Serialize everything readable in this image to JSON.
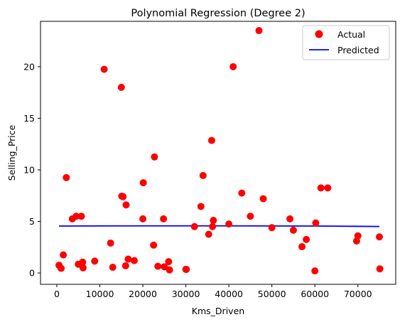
{
  "chart_data": {
    "type": "scatter",
    "title": "Polynomial Regression (Degree 2)",
    "xlabel": "Kms_Driven",
    "ylabel": "Selling_Price",
    "xlim": [
      -3800,
      78800
    ],
    "ylim": [
      -1.1,
      24.4
    ],
    "xticks": [
      0,
      10000,
      20000,
      30000,
      40000,
      50000,
      60000,
      70000
    ],
    "xtick_labels": [
      "0",
      "10000",
      "20000",
      "30000",
      "40000",
      "50000",
      "60000",
      "70000"
    ],
    "yticks": [
      0,
      5,
      10,
      15,
      20
    ],
    "ytick_labels": [
      "0",
      "5",
      "10",
      "15",
      "20"
    ],
    "grid": false,
    "legend_position": "top-right",
    "colors": {
      "actual": "#ff0000",
      "predicted": "#0000ff"
    },
    "series": [
      {
        "name": "Actual",
        "kind": "scatter",
        "points": [
          [
            500,
            0.75
          ],
          [
            1000,
            0.45
          ],
          [
            1500,
            1.75
          ],
          [
            2200,
            9.25
          ],
          [
            3600,
            5.25
          ],
          [
            4500,
            5.5
          ],
          [
            5000,
            0.85
          ],
          [
            5700,
            5.5
          ],
          [
            6000,
            1.05
          ],
          [
            6100,
            0.5
          ],
          [
            8800,
            1.15
          ],
          [
            11000,
            19.75
          ],
          [
            12500,
            2.9
          ],
          [
            13000,
            0.55
          ],
          [
            15000,
            18.0
          ],
          [
            15100,
            7.45
          ],
          [
            15400,
            7.4
          ],
          [
            16000,
            0.7
          ],
          [
            16100,
            6.6
          ],
          [
            16600,
            1.35
          ],
          [
            18000,
            1.2
          ],
          [
            20000,
            5.25
          ],
          [
            20100,
            8.75
          ],
          [
            22500,
            2.7
          ],
          [
            22700,
            11.25
          ],
          [
            23500,
            0.65
          ],
          [
            24800,
            5.25
          ],
          [
            25000,
            0.6
          ],
          [
            26000,
            1.1
          ],
          [
            26200,
            0.3
          ],
          [
            30000,
            0.35
          ],
          [
            30100,
            0.35
          ],
          [
            32000,
            4.5
          ],
          [
            33500,
            6.45
          ],
          [
            34000,
            9.45
          ],
          [
            35300,
            3.75
          ],
          [
            36000,
            12.85
          ],
          [
            36200,
            4.5
          ],
          [
            36400,
            5.1
          ],
          [
            40000,
            4.75
          ],
          [
            41000,
            20.0
          ],
          [
            43000,
            7.75
          ],
          [
            45000,
            5.5
          ],
          [
            47000,
            23.5
          ],
          [
            48000,
            7.2
          ],
          [
            50000,
            4.4
          ],
          [
            54200,
            5.25
          ],
          [
            55000,
            4.15
          ],
          [
            57000,
            2.55
          ],
          [
            58000,
            3.25
          ],
          [
            60000,
            0.2
          ],
          [
            60200,
            4.85
          ],
          [
            61400,
            8.25
          ],
          [
            63000,
            8.25
          ],
          [
            69700,
            3.1
          ],
          [
            70000,
            3.6
          ],
          [
            75000,
            3.5
          ],
          [
            75100,
            0.4
          ]
        ]
      },
      {
        "name": "Predicted",
        "kind": "line",
        "points": [
          [
            500,
            4.55
          ],
          [
            20000,
            4.57
          ],
          [
            40000,
            4.57
          ],
          [
            60000,
            4.55
          ],
          [
            75000,
            4.51
          ]
        ]
      }
    ]
  }
}
